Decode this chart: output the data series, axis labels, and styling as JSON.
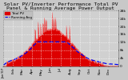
{
  "title": "Solar PV/Inverter Performance Total PV Panel & Running Average Power Output",
  "legend_pv": "Total PV",
  "legend_avg": "Running Avg",
  "bg_color": "#c8c8c8",
  "plot_bg": "#d0d0d0",
  "grid_color": "#ffffff",
  "bar_color": "#dd0000",
  "bar_edge_color": "#ff4444",
  "avg_color": "#0000ee",
  "num_points": 365,
  "ylim": [
    0,
    28
  ],
  "yticks": [
    0,
    4,
    8,
    12,
    16,
    20,
    24,
    28
  ],
  "ytick_labels": [
    "0",
    "4k",
    "8k",
    "12k",
    "16k",
    "20k",
    "24k",
    "28k"
  ],
  "title_fontsize": 4.5,
  "tick_fontsize": 3.2,
  "legend_fontsize": 3.0
}
